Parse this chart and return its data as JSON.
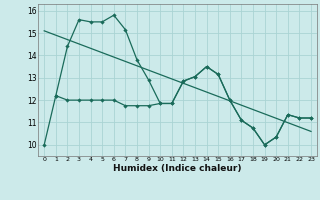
{
  "xlabel": "Humidex (Indice chaleur)",
  "bg_color": "#cceaea",
  "grid_color": "#aad4d4",
  "line_color": "#1a6b5a",
  "xlim": [
    -0.5,
    23.5
  ],
  "ylim": [
    9.5,
    16.3
  ],
  "yticks": [
    10,
    11,
    12,
    13,
    14,
    15,
    16
  ],
  "xticks": [
    0,
    1,
    2,
    3,
    4,
    5,
    6,
    7,
    8,
    9,
    10,
    11,
    12,
    13,
    14,
    15,
    16,
    17,
    18,
    19,
    20,
    21,
    22,
    23
  ],
  "series_main_x": [
    0,
    1,
    2,
    3,
    4,
    5,
    6,
    7,
    8,
    9,
    10,
    11,
    12,
    13,
    14,
    15,
    16,
    17,
    18,
    19,
    20,
    21,
    22,
    23
  ],
  "series_main_y": [
    10.0,
    12.2,
    14.4,
    15.6,
    15.5,
    15.5,
    15.8,
    15.15,
    13.8,
    12.9,
    11.85,
    11.85,
    12.85,
    13.05,
    13.5,
    13.15,
    12.0,
    11.1,
    10.75,
    10.0,
    10.35,
    11.35,
    11.2,
    11.2
  ],
  "series_flat_x": [
    1,
    2,
    3,
    4,
    5,
    6,
    7,
    8,
    9,
    10,
    11,
    12,
    13,
    14,
    15,
    16,
    17,
    18,
    19,
    20,
    21,
    22,
    23
  ],
  "series_flat_y": [
    12.2,
    12.0,
    12.0,
    12.0,
    12.0,
    12.0,
    11.75,
    11.75,
    11.75,
    11.85,
    11.85,
    12.85,
    13.05,
    13.5,
    13.15,
    12.0,
    11.1,
    10.75,
    10.0,
    10.35,
    11.35,
    11.2,
    11.2
  ],
  "trend_x": [
    0,
    23
  ],
  "trend_y": [
    15.1,
    10.6
  ]
}
